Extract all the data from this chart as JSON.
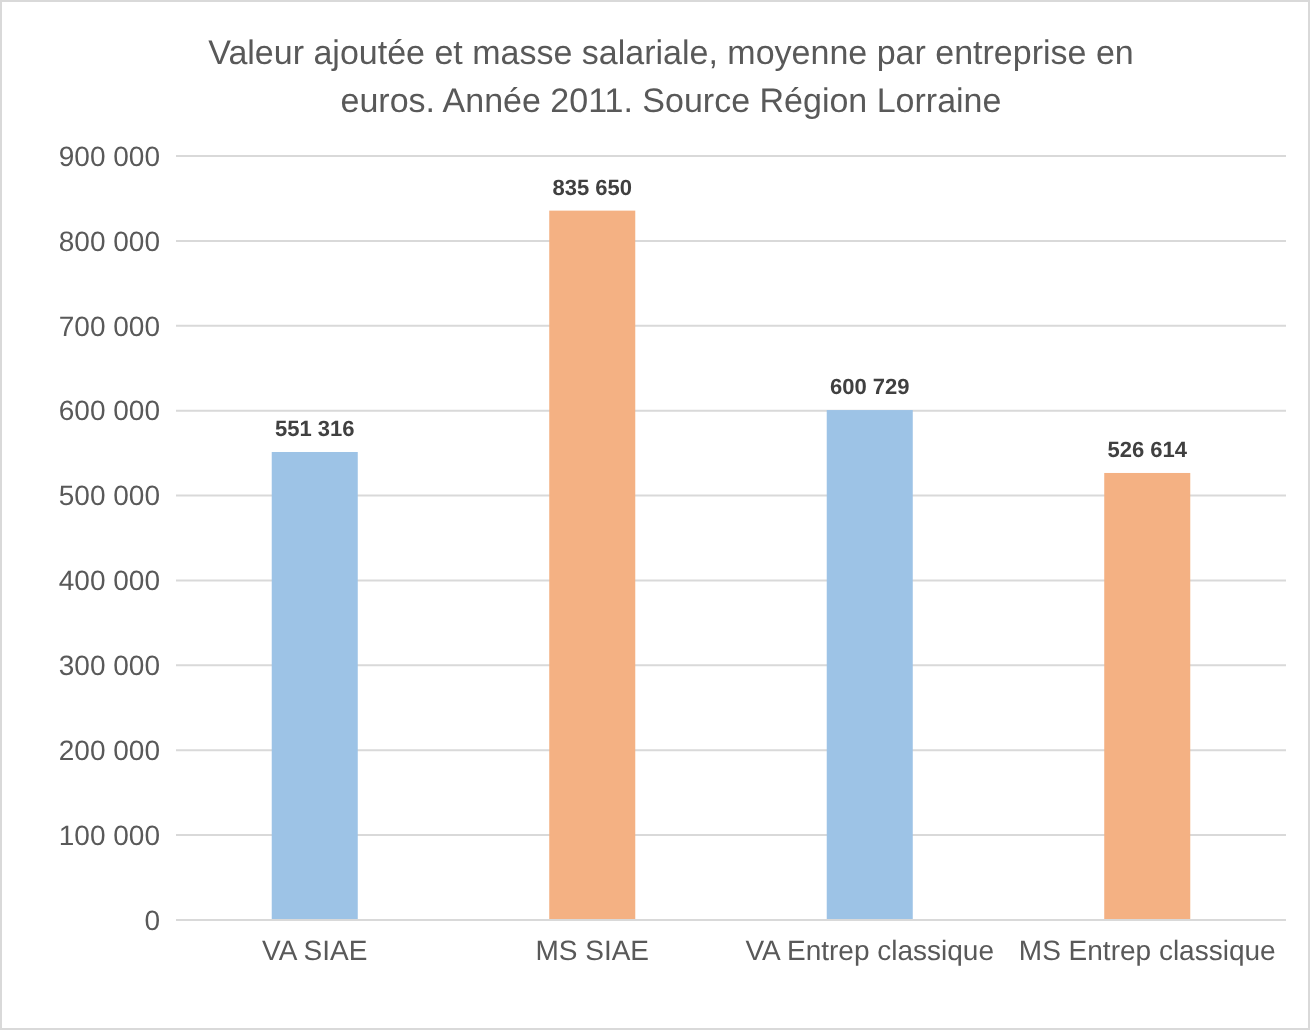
{
  "chart_data": {
    "type": "bar",
    "title": "Valeur ajoutée et masse salariale, moyenne par entreprise en euros. Année 2011. Source Région Lorraine",
    "categories": [
      "VA SIAE",
      "MS SIAE",
      "VA Entrep classique",
      "MS Entrep classique"
    ],
    "values": [
      551316,
      835650,
      600729,
      526614
    ],
    "colors": [
      "#9dc3e6",
      "#f4b183",
      "#9dc3e6",
      "#f4b183"
    ],
    "value_labels": [
      "551 316",
      "835 650",
      "600 729",
      "526 614"
    ],
    "ylim": [
      0,
      900000
    ],
    "yticks": [
      0,
      {
        "value": 100000,
        "label": "100 000"
      },
      {
        "value": 200000,
        "label": "200 000"
      },
      {
        "value": 300000,
        "label": "300 000"
      },
      {
        "value": 400000,
        "label": "400 000"
      },
      {
        "value": 500000,
        "label": "500 000"
      },
      {
        "value": 600000,
        "label": "600 000"
      },
      {
        "value": 700000,
        "label": "700 000"
      },
      {
        "value": 800000,
        "label": "800 000"
      },
      {
        "value": 900000,
        "label": "900 000"
      }
    ],
    "grid": true
  }
}
